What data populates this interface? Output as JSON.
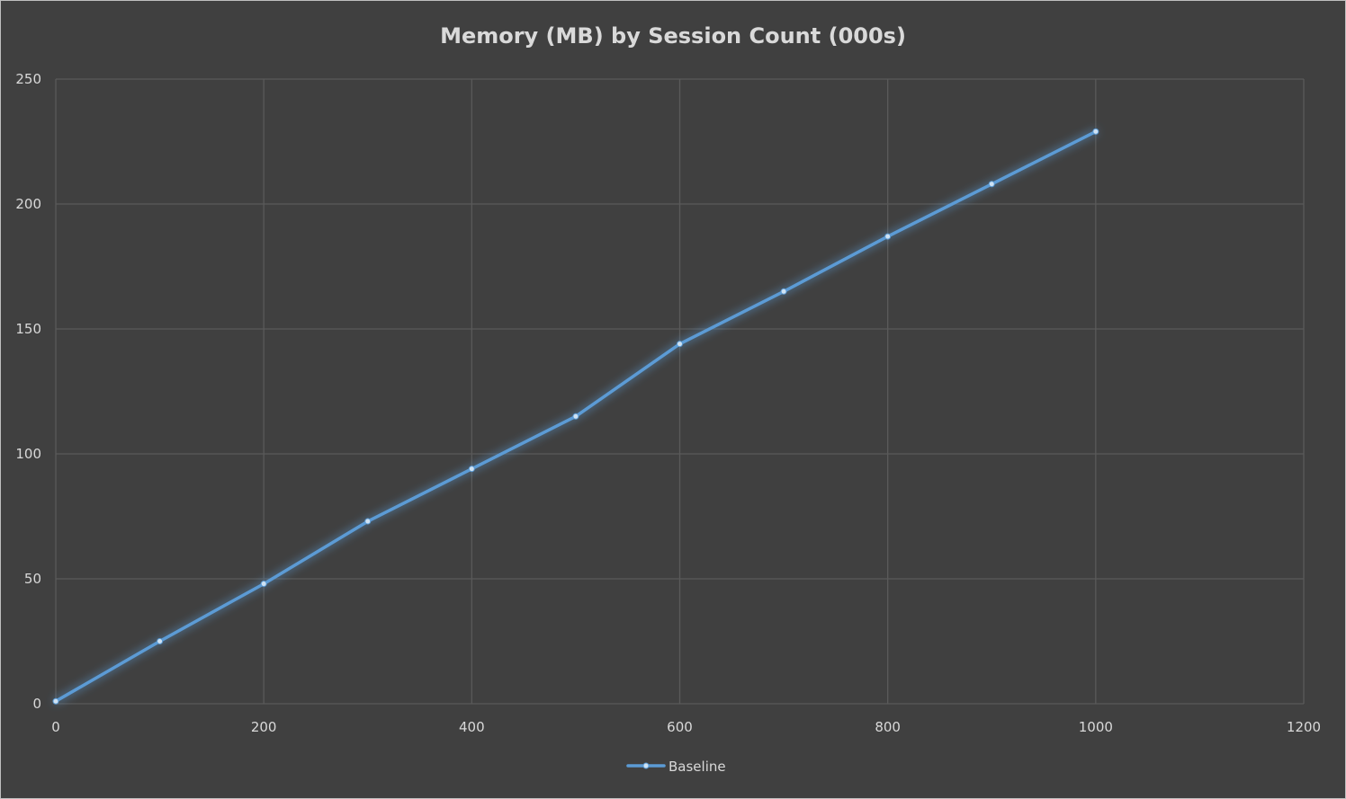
{
  "chart_data": {
    "type": "scatter",
    "title": "Memory (MB) by Session Count (000s)",
    "xlabel": "",
    "ylabel": "",
    "xlim": [
      0,
      1200
    ],
    "ylim": [
      0,
      250
    ],
    "x_ticks": [
      0,
      200,
      400,
      600,
      800,
      1000,
      1200
    ],
    "y_ticks": [
      0,
      50,
      100,
      150,
      200,
      250
    ],
    "grid": true,
    "legend_position": "bottom",
    "line_style": "straight lines with markers",
    "series": [
      {
        "name": "Baseline",
        "color": "#5b9bd5",
        "x": [
          0,
          100,
          200,
          300,
          400,
          500,
          600,
          700,
          800,
          900,
          1000
        ],
        "y": [
          1,
          25,
          48,
          73,
          94,
          115,
          144,
          165,
          187,
          208,
          229
        ]
      }
    ]
  },
  "colors": {
    "background": "#404040",
    "gridline": "#5a5a5a",
    "text": "#d9d9d9",
    "border": "#bfbfbf"
  }
}
